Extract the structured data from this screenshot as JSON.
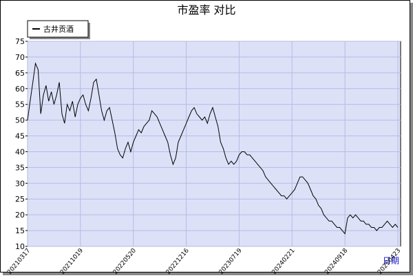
{
  "chart_data": {
    "type": "line",
    "title": "市盈率  对比",
    "x_label": "日期",
    "categories": [
      "20210317",
      null,
      null,
      null,
      null,
      null,
      null,
      null,
      null,
      null,
      null,
      null,
      null,
      null,
      null,
      null,
      null,
      null,
      null,
      null,
      "20211019",
      null,
      null,
      null,
      null,
      null,
      null,
      null,
      null,
      null,
      null,
      null,
      null,
      null,
      null,
      null,
      null,
      null,
      null,
      null,
      "20220520",
      null,
      null,
      null,
      null,
      null,
      null,
      null,
      null,
      null,
      null,
      null,
      null,
      null,
      null,
      null,
      null,
      null,
      null,
      null,
      "20221216",
      null,
      null,
      null,
      null,
      null,
      null,
      null,
      null,
      null,
      null,
      null,
      null,
      null,
      null,
      null,
      null,
      null,
      null,
      null,
      "20230719",
      null,
      null,
      null,
      null,
      null,
      null,
      null,
      null,
      null,
      null,
      null,
      null,
      null,
      null,
      null,
      null,
      null,
      null,
      null,
      "20240221",
      null,
      null,
      null,
      null,
      null,
      null,
      null,
      null,
      null,
      null,
      null,
      null,
      null,
      null,
      null,
      null,
      null,
      null,
      null,
      "20240918",
      null,
      null,
      null,
      null,
      null,
      null,
      null,
      null,
      null,
      null,
      null,
      null,
      null,
      null,
      null,
      null,
      null,
      null,
      null,
      "20250423"
    ],
    "series": [
      {
        "name": "古井贡酒",
        "color": "#000000",
        "values": [
          50,
          56,
          62,
          68,
          66,
          52,
          58,
          61,
          56,
          59,
          55,
          58,
          62,
          52,
          49,
          55,
          53,
          56,
          51,
          55,
          57,
          58,
          55,
          53,
          57,
          62,
          63,
          58,
          53,
          50,
          53,
          54,
          50,
          46,
          41,
          39,
          38,
          41,
          43,
          40,
          43,
          45,
          47,
          46,
          48,
          49,
          50,
          53,
          52,
          51,
          49,
          47,
          45,
          43,
          39,
          36,
          38,
          43,
          45,
          47,
          49,
          51,
          53,
          54,
          52,
          51,
          50,
          51,
          49,
          52,
          54,
          51,
          48,
          43,
          41,
          38,
          36,
          37,
          36,
          37,
          39,
          40,
          40,
          39,
          39,
          38,
          37,
          36,
          35,
          34,
          32,
          31,
          30,
          29,
          28,
          27,
          26,
          26,
          25,
          26,
          27,
          28,
          30,
          32,
          32,
          31,
          30,
          28,
          26,
          25,
          23,
          22,
          20,
          19,
          18,
          18,
          17,
          16,
          16,
          15,
          14,
          19,
          20,
          19,
          20,
          19,
          18,
          18,
          17,
          17,
          16,
          16,
          15,
          16,
          16,
          17,
          18,
          17,
          16,
          17,
          16
        ]
      }
    ],
    "ylim": [
      10,
      75
    ],
    "yticks": [
      10,
      15,
      20,
      25,
      30,
      35,
      40,
      45,
      50,
      55,
      60,
      65,
      70,
      75
    ],
    "grid": true,
    "legend": "top-left"
  }
}
